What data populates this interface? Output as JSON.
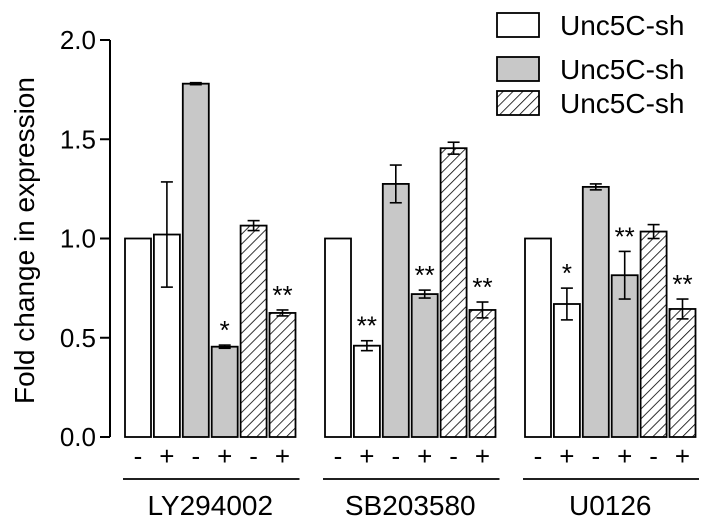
{
  "chart_data": {
    "type": "bar",
    "ylabel": "Fold change in expression",
    "xlabel": "",
    "ylim": [
      0,
      2.0
    ],
    "yticks": [
      "0.0",
      "0.5",
      "1.0",
      "1.5",
      "2.0"
    ],
    "ytick_values": [
      0,
      0.5,
      1.0,
      1.5,
      2.0
    ],
    "groups": [
      "LY294002",
      "SB203580",
      "U0126"
    ],
    "treatment_labels": [
      "-",
      "+",
      "-",
      "+",
      "-",
      "+"
    ],
    "legend": {
      "placement": "top-right",
      "entries": [
        "Unc5C-sh",
        "Unc5C-sh",
        "Unc5C-sh"
      ]
    },
    "series": [
      {
        "pattern": "white",
        "values": [
          [
            1.0,
            1.02
          ],
          [
            1.0,
            0.46
          ],
          [
            1.0,
            0.67
          ]
        ],
        "errors": [
          [
            0,
            0.265
          ],
          [
            0,
            0.025
          ],
          [
            0,
            0.08
          ]
        ],
        "significance": [
          [
            "",
            ""
          ],
          [
            "",
            "**"
          ],
          [
            "",
            "*"
          ]
        ]
      },
      {
        "pattern": "gray",
        "values": [
          [
            1.78,
            0.455
          ],
          [
            1.275,
            0.72
          ],
          [
            1.26,
            0.815
          ]
        ],
        "errors": [
          [
            0.005,
            0.008
          ],
          [
            0.095,
            0.02
          ],
          [
            0.015,
            0.12
          ]
        ],
        "significance": [
          [
            "",
            "*"
          ],
          [
            "",
            "**"
          ],
          [
            "",
            "**"
          ]
        ]
      },
      {
        "pattern": "hatched",
        "values": [
          [
            1.065,
            0.625
          ],
          [
            1.455,
            0.64
          ],
          [
            1.035,
            0.645
          ]
        ],
        "errors": [
          [
            0.025,
            0.015
          ],
          [
            0.03,
            0.04
          ],
          [
            0.035,
            0.05
          ]
        ],
        "significance": [
          [
            "",
            "**"
          ],
          [
            "",
            "**"
          ],
          [
            "",
            "**"
          ]
        ]
      }
    ],
    "colors": {
      "white": "#ffffff",
      "gray": "#c8c8c8",
      "hatched": "#ffffff",
      "stroke": "#000000"
    },
    "grid": false
  }
}
